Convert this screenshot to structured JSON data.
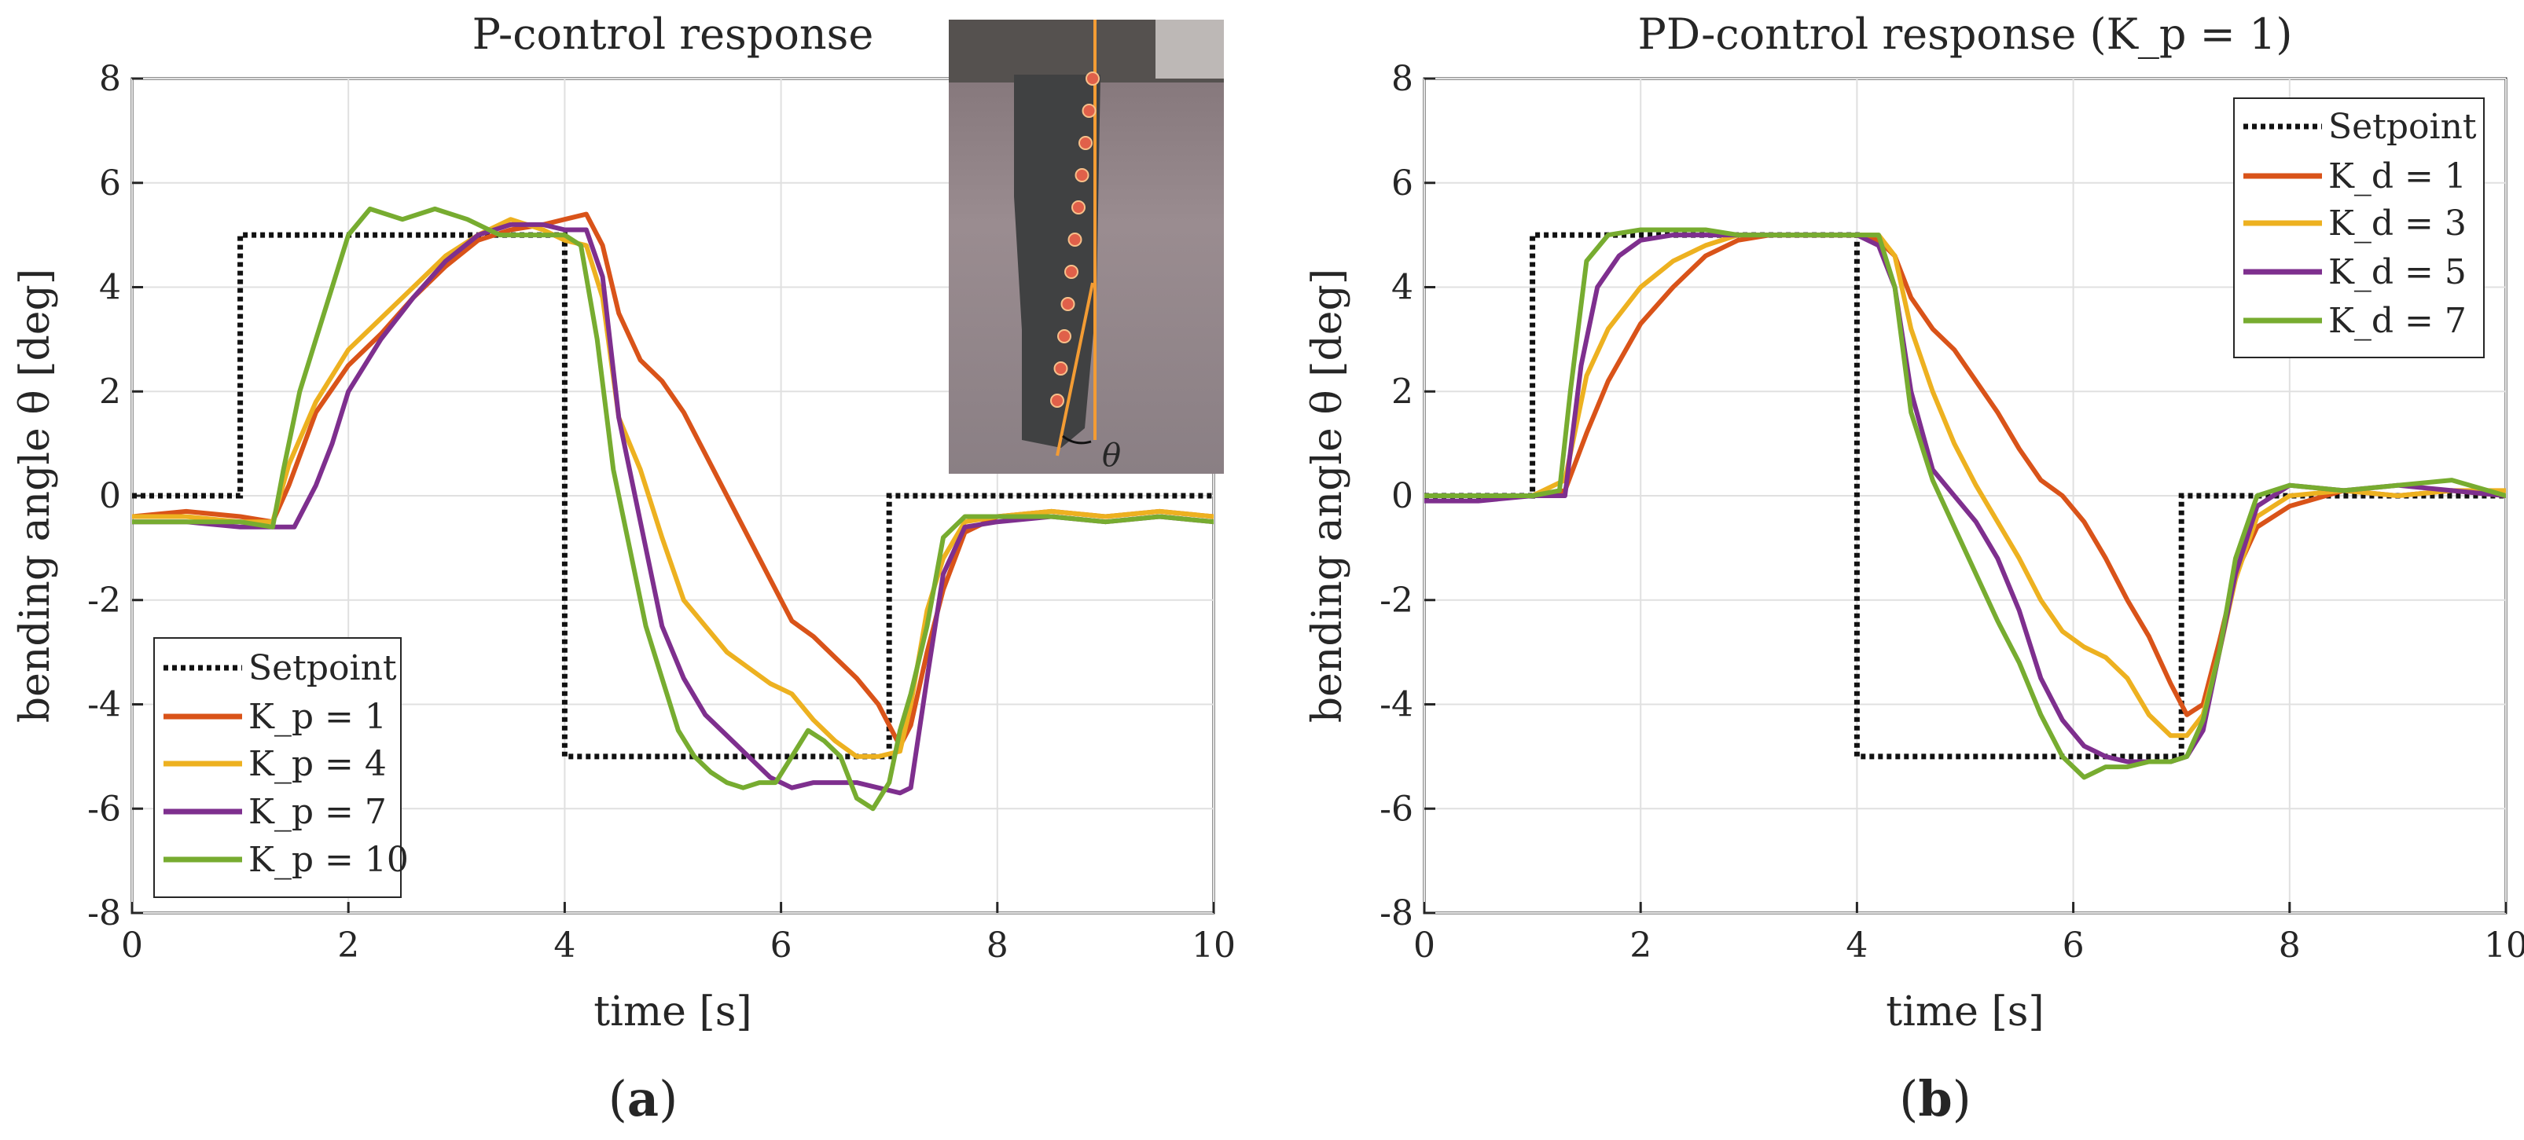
{
  "chart_data": [
    {
      "type": "line",
      "title": "P-control response",
      "xlabel": "time [s]",
      "ylabel": "bending angle θ [deg]",
      "caption_letter": "a",
      "xlim": [
        0,
        10
      ],
      "ylim": [
        -8,
        8
      ],
      "xticks": [
        0,
        2,
        4,
        6,
        8,
        10
      ],
      "yticks": [
        -8,
        -6,
        -4,
        -2,
        0,
        2,
        4,
        6,
        8
      ],
      "xtick_labels": [
        "0",
        "2",
        "4",
        "6",
        "8",
        "10"
      ],
      "ytick_labels": [
        "-8",
        "-6",
        "-4",
        "-2",
        "0",
        "2",
        "4",
        "6",
        "8"
      ],
      "grid": true,
      "legend_position": "bottom-left",
      "inset": {
        "label": "θ",
        "description_hidden": true
      },
      "setpoint": {
        "name": "Setpoint",
        "color": "#111111",
        "style": "dotted",
        "x": [
          0,
          1,
          1,
          4,
          4,
          7,
          7,
          10
        ],
        "y": [
          0,
          0,
          5,
          5,
          -5,
          -5,
          0,
          0
        ]
      },
      "series": [
        {
          "name": "K_p = 1",
          "color": "#D95319",
          "x": [
            0,
            0.5,
            1.0,
            1.3,
            1.45,
            1.7,
            2.0,
            2.3,
            2.6,
            2.9,
            3.2,
            3.5,
            3.8,
            4.0,
            4.2,
            4.35,
            4.5,
            4.7,
            4.9,
            5.1,
            5.3,
            5.5,
            5.7,
            5.9,
            6.1,
            6.3,
            6.5,
            6.7,
            6.9,
            7.1,
            7.2,
            7.35,
            7.5,
            7.7,
            8.0,
            8.5,
            9.0,
            9.5,
            10.0
          ],
          "y": [
            -0.4,
            -0.3,
            -0.4,
            -0.5,
            0.2,
            1.6,
            2.5,
            3.1,
            3.8,
            4.4,
            4.9,
            5.1,
            5.2,
            5.3,
            5.4,
            4.8,
            3.5,
            2.6,
            2.2,
            1.6,
            0.8,
            0.0,
            -0.8,
            -1.6,
            -2.4,
            -2.7,
            -3.1,
            -3.5,
            -4.0,
            -4.8,
            -4.4,
            -3.0,
            -1.8,
            -0.7,
            -0.4,
            -0.3,
            -0.4,
            -0.3,
            -0.4
          ]
        },
        {
          "name": "K_p = 4",
          "color": "#EDB120",
          "x": [
            0,
            0.5,
            1.0,
            1.3,
            1.45,
            1.7,
            2.0,
            2.3,
            2.6,
            2.9,
            3.2,
            3.5,
            3.8,
            4.0,
            4.2,
            4.35,
            4.5,
            4.7,
            4.9,
            5.1,
            5.3,
            5.5,
            5.7,
            5.9,
            6.1,
            6.3,
            6.5,
            6.7,
            6.9,
            7.1,
            7.2,
            7.35,
            7.5,
            7.7,
            8.0,
            8.5,
            9.0,
            9.5,
            10.0
          ],
          "y": [
            -0.4,
            -0.4,
            -0.5,
            -0.5,
            0.6,
            1.8,
            2.8,
            3.4,
            4.0,
            4.6,
            5.0,
            5.3,
            5.1,
            4.9,
            4.8,
            3.8,
            1.5,
            0.5,
            -0.8,
            -2.0,
            -2.5,
            -3.0,
            -3.3,
            -3.6,
            -3.8,
            -4.3,
            -4.7,
            -5.0,
            -5.0,
            -4.9,
            -4.0,
            -2.2,
            -1.2,
            -0.5,
            -0.4,
            -0.3,
            -0.4,
            -0.3,
            -0.4
          ]
        },
        {
          "name": "K_p = 7",
          "color": "#7E2F8E",
          "x": [
            0,
            0.5,
            1.0,
            1.3,
            1.5,
            1.7,
            1.85,
            2.0,
            2.3,
            2.6,
            2.9,
            3.2,
            3.5,
            3.8,
            4.0,
            4.2,
            4.35,
            4.5,
            4.7,
            4.9,
            5.1,
            5.3,
            5.5,
            5.7,
            5.9,
            6.1,
            6.3,
            6.5,
            6.7,
            6.9,
            7.1,
            7.2,
            7.35,
            7.5,
            7.7,
            8.0,
            8.5,
            9.0,
            9.5,
            10.0
          ],
          "y": [
            -0.5,
            -0.5,
            -0.6,
            -0.6,
            -0.6,
            0.2,
            1.0,
            2.0,
            3.0,
            3.8,
            4.5,
            5.0,
            5.2,
            5.2,
            5.1,
            5.1,
            4.2,
            1.5,
            -0.5,
            -2.5,
            -3.5,
            -4.2,
            -4.6,
            -5.0,
            -5.4,
            -5.6,
            -5.5,
            -5.5,
            -5.5,
            -5.6,
            -5.7,
            -5.6,
            -3.5,
            -1.5,
            -0.6,
            -0.5,
            -0.4,
            -0.5,
            -0.4,
            -0.5
          ]
        },
        {
          "name": "K_p = 10",
          "color": "#77AC30",
          "x": [
            0,
            0.5,
            1.0,
            1.3,
            1.4,
            1.55,
            1.7,
            1.85,
            2.0,
            2.2,
            2.5,
            2.8,
            3.1,
            3.4,
            3.7,
            4.0,
            4.15,
            4.3,
            4.45,
            4.6,
            4.75,
            4.9,
            5.05,
            5.2,
            5.35,
            5.5,
            5.65,
            5.8,
            5.95,
            6.1,
            6.25,
            6.4,
            6.55,
            6.7,
            6.85,
            7.0,
            7.1,
            7.2,
            7.35,
            7.5,
            7.7,
            8.0,
            8.5,
            9.0,
            9.5,
            10.0
          ],
          "y": [
            -0.5,
            -0.5,
            -0.5,
            -0.6,
            0.5,
            2.0,
            3.0,
            4.0,
            5.0,
            5.5,
            5.3,
            5.5,
            5.3,
            5.0,
            5.0,
            5.0,
            4.8,
            3.0,
            0.5,
            -1.0,
            -2.5,
            -3.5,
            -4.5,
            -5.0,
            -5.3,
            -5.5,
            -5.6,
            -5.5,
            -5.5,
            -5.0,
            -4.5,
            -4.7,
            -5.0,
            -5.8,
            -6.0,
            -5.5,
            -4.5,
            -3.8,
            -2.5,
            -0.8,
            -0.4,
            -0.4,
            -0.4,
            -0.5,
            -0.4,
            -0.5
          ]
        }
      ]
    },
    {
      "type": "line",
      "title": "PD-control response (K_p = 1)",
      "xlabel": "time [s]",
      "ylabel": "bending angle θ [deg]",
      "caption_letter": "b",
      "xlim": [
        0,
        10
      ],
      "ylim": [
        -8,
        8
      ],
      "xticks": [
        0,
        2,
        4,
        6,
        8,
        10
      ],
      "yticks": [
        -8,
        -6,
        -4,
        -2,
        0,
        2,
        4,
        6,
        8
      ],
      "xtick_labels": [
        "0",
        "2",
        "4",
        "6",
        "8",
        "10"
      ],
      "ytick_labels": [
        "-8",
        "-6",
        "-4",
        "-2",
        "0",
        "2",
        "4",
        "6",
        "8"
      ],
      "grid": true,
      "legend_position": "top-right",
      "setpoint": {
        "name": "Setpoint",
        "color": "#111111",
        "style": "dotted",
        "x": [
          0,
          1,
          1,
          4,
          4,
          7,
          7,
          10
        ],
        "y": [
          0,
          0,
          5,
          5,
          -5,
          -5,
          0,
          0
        ]
      },
      "series": [
        {
          "name": "K_d = 1",
          "color": "#D95319",
          "x": [
            0,
            0.5,
            1.0,
            1.3,
            1.5,
            1.7,
            2.0,
            2.3,
            2.6,
            2.9,
            3.2,
            3.5,
            3.8,
            4.0,
            4.2,
            4.35,
            4.5,
            4.7,
            4.9,
            5.1,
            5.3,
            5.5,
            5.7,
            5.9,
            6.1,
            6.3,
            6.5,
            6.7,
            6.9,
            7.05,
            7.2,
            7.35,
            7.5,
            7.7,
            8.0,
            8.5,
            9.0,
            9.5,
            10.0
          ],
          "y": [
            0.0,
            0.0,
            0.0,
            0.1,
            1.2,
            2.2,
            3.3,
            4.0,
            4.6,
            4.9,
            5.0,
            5.0,
            5.0,
            5.0,
            4.9,
            4.6,
            3.8,
            3.2,
            2.8,
            2.2,
            1.6,
            0.9,
            0.3,
            0.0,
            -0.5,
            -1.2,
            -2.0,
            -2.7,
            -3.6,
            -4.2,
            -4.0,
            -2.8,
            -1.5,
            -0.6,
            -0.2,
            0.1,
            0.0,
            0.1,
            0.0
          ]
        },
        {
          "name": "K_d = 3",
          "color": "#EDB120",
          "x": [
            0,
            0.5,
            1.0,
            1.3,
            1.5,
            1.7,
            2.0,
            2.3,
            2.6,
            2.9,
            3.2,
            3.5,
            3.8,
            4.0,
            4.2,
            4.35,
            4.5,
            4.7,
            4.9,
            5.1,
            5.3,
            5.5,
            5.7,
            5.9,
            6.1,
            6.3,
            6.5,
            6.7,
            6.9,
            7.05,
            7.2,
            7.35,
            7.5,
            7.7,
            8.0,
            8.5,
            9.0,
            9.5,
            10.0
          ],
          "y": [
            0.0,
            0.0,
            0.0,
            0.3,
            2.3,
            3.2,
            4.0,
            4.5,
            4.8,
            5.0,
            5.0,
            5.0,
            5.0,
            5.0,
            5.0,
            4.6,
            3.2,
            2.0,
            1.0,
            0.2,
            -0.5,
            -1.2,
            -2.0,
            -2.6,
            -2.9,
            -3.1,
            -3.5,
            -4.2,
            -4.6,
            -4.6,
            -4.2,
            -3.0,
            -1.6,
            -0.4,
            0.0,
            0.1,
            0.0,
            0.1,
            0.1
          ]
        },
        {
          "name": "K_d = 5",
          "color": "#7E2F8E",
          "x": [
            0,
            0.5,
            1.0,
            1.3,
            1.45,
            1.6,
            1.8,
            2.0,
            2.3,
            2.6,
            2.9,
            3.2,
            3.5,
            3.8,
            4.0,
            4.2,
            4.35,
            4.5,
            4.7,
            4.9,
            5.1,
            5.3,
            5.5,
            5.7,
            5.9,
            6.1,
            6.3,
            6.5,
            6.7,
            6.9,
            7.05,
            7.2,
            7.35,
            7.5,
            7.7,
            8.0,
            8.5,
            9.0,
            9.5,
            10.0
          ],
          "y": [
            -0.1,
            -0.1,
            0.0,
            0.0,
            2.5,
            4.0,
            4.6,
            4.9,
            5.0,
            5.0,
            5.0,
            5.0,
            5.0,
            5.0,
            5.0,
            4.8,
            4.0,
            2.0,
            0.5,
            0.0,
            -0.5,
            -1.2,
            -2.2,
            -3.5,
            -4.3,
            -4.8,
            -5.0,
            -5.1,
            -5.1,
            -5.1,
            -5.0,
            -4.5,
            -3.0,
            -1.5,
            -0.2,
            0.2,
            0.1,
            0.2,
            0.1,
            0.0
          ]
        },
        {
          "name": "K_d = 7",
          "color": "#77AC30",
          "x": [
            0,
            0.5,
            1.0,
            1.25,
            1.35,
            1.5,
            1.7,
            2.0,
            2.3,
            2.6,
            2.9,
            3.2,
            3.5,
            3.8,
            4.0,
            4.2,
            4.35,
            4.5,
            4.7,
            4.9,
            5.1,
            5.3,
            5.5,
            5.7,
            5.9,
            6.1,
            6.3,
            6.5,
            6.7,
            6.9,
            7.05,
            7.2,
            7.35,
            7.5,
            7.7,
            8.0,
            8.5,
            9.0,
            9.5,
            10.0
          ],
          "y": [
            0.0,
            0.0,
            0.0,
            0.1,
            2.0,
            4.5,
            5.0,
            5.1,
            5.1,
            5.1,
            5.0,
            5.0,
            5.0,
            5.0,
            5.0,
            5.0,
            4.0,
            1.6,
            0.3,
            -0.6,
            -1.5,
            -2.4,
            -3.2,
            -4.2,
            -5.0,
            -5.4,
            -5.2,
            -5.2,
            -5.1,
            -5.1,
            -5.0,
            -4.3,
            -3.0,
            -1.2,
            0.0,
            0.2,
            0.1,
            0.2,
            0.3,
            0.0
          ]
        }
      ]
    }
  ],
  "colors": {
    "kp1": "#D95319",
    "kp4": "#EDB120",
    "kp7": "#7E2F8E",
    "kp10": "#77AC30",
    "setpoint": "#111111",
    "inset_line": "#F39C34",
    "inset_marker": "#E0604A"
  }
}
